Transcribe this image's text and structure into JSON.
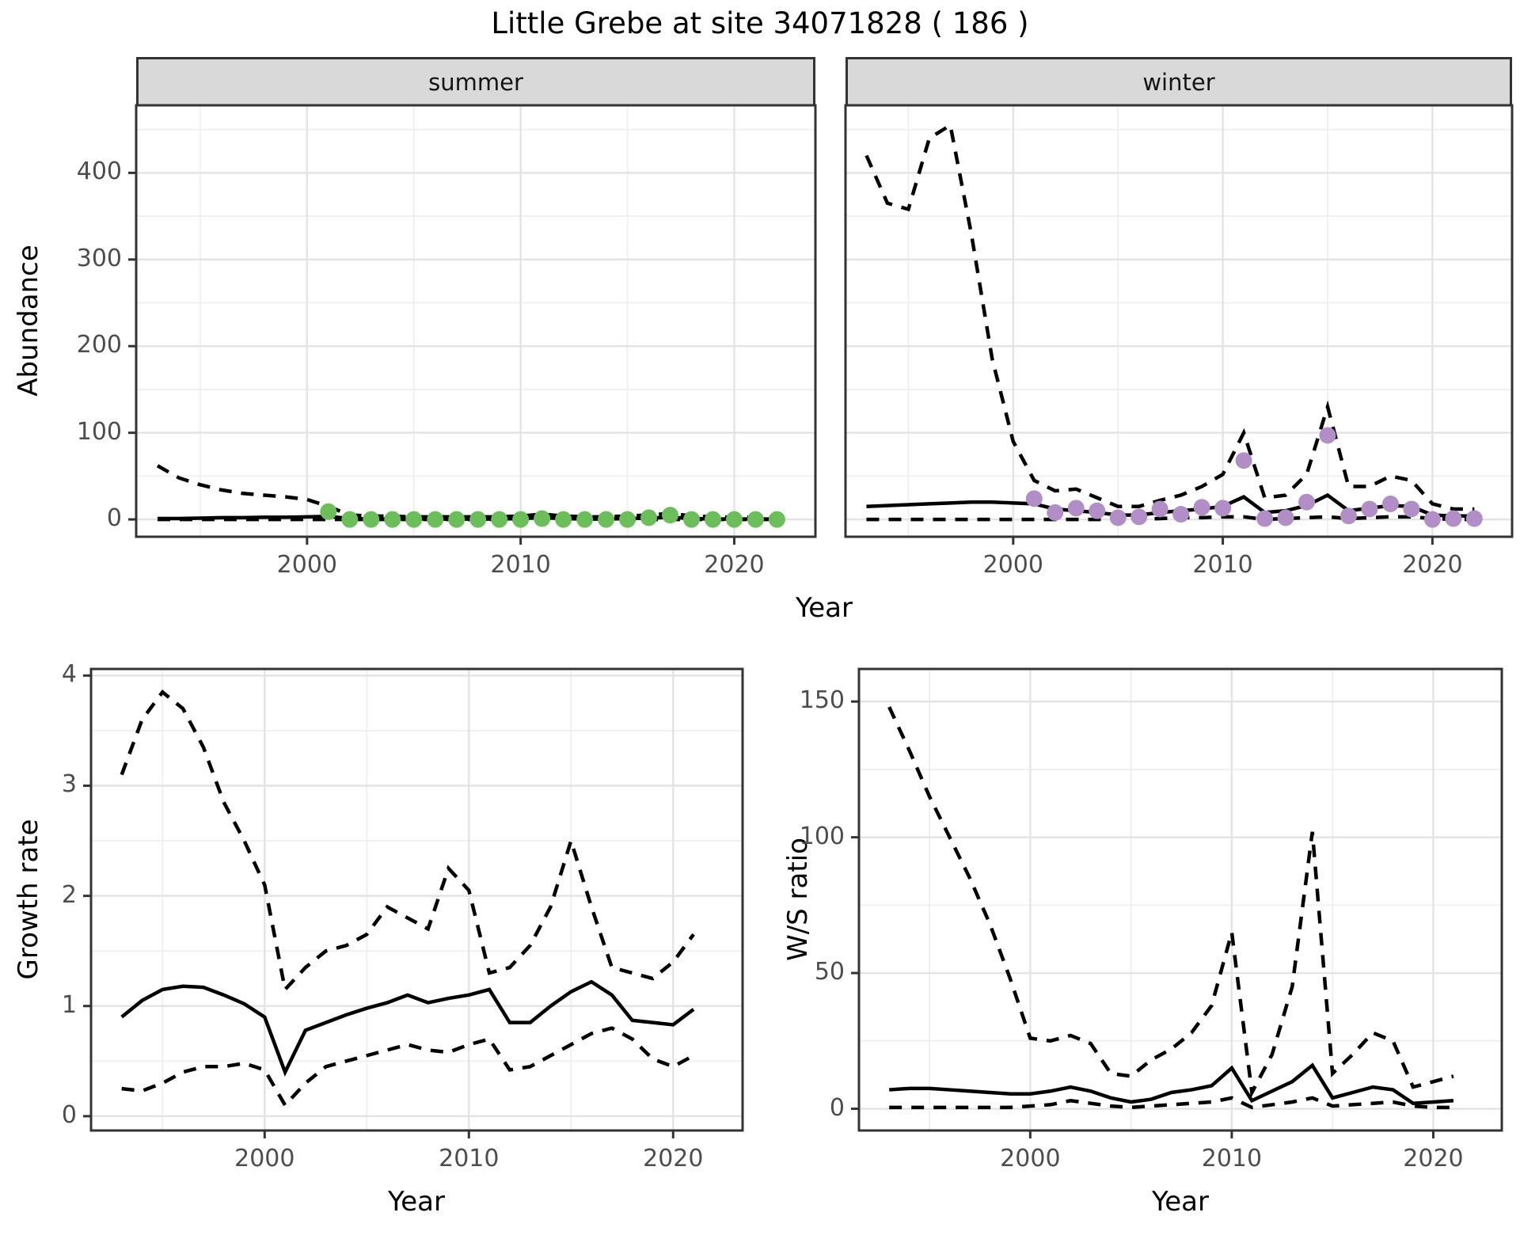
{
  "title": "Little Grebe at site 34071828 ( 186 )",
  "colors": {
    "line": "#000000",
    "summer_points": "#6BBE5A",
    "winter_points": "#B28EC7",
    "grid_major": "#e4e4e4",
    "grid_minor": "#efefef",
    "panel_border": "#333333",
    "strip_bg": "#d9d9d9",
    "tick_text": "#4d4d4d"
  },
  "chart_data": [
    {
      "id": "abundance-summer",
      "type": "line",
      "facet": "summer",
      "xlabel": "Year",
      "ylabel": "Abundance",
      "xlim": [
        1992,
        2023.8
      ],
      "ylim": [
        -20,
        478
      ],
      "xticks": [
        2000,
        2010,
        2020
      ],
      "xminor": [
        1995,
        2005,
        2015
      ],
      "yticks": [
        0,
        100,
        200,
        300,
        400
      ],
      "yminor": [
        50,
        150,
        250,
        350,
        450
      ],
      "show_yaxis": true,
      "x": [
        1993,
        1994,
        1995,
        1996,
        1997,
        1998,
        1999,
        2000,
        2001,
        2002,
        2003,
        2004,
        2005,
        2006,
        2007,
        2008,
        2009,
        2010,
        2011,
        2012,
        2013,
        2014,
        2015,
        2016,
        2017,
        2018,
        2019,
        2020,
        2021,
        2022
      ],
      "series": [
        {
          "name": "upper-95ci",
          "style": "dashed",
          "values": [
            62,
            48,
            40,
            34,
            30,
            28,
            26,
            23,
            15,
            5,
            4,
            3.5,
            3,
            3,
            3,
            3,
            3,
            4,
            6,
            4,
            3,
            3,
            4,
            5,
            7,
            4,
            3,
            2.5,
            2.5,
            2.5
          ]
        },
        {
          "name": "model-fit",
          "style": "solid",
          "values": [
            1,
            1,
            1.5,
            2,
            2,
            2.5,
            2.5,
            3,
            3.5,
            1,
            0.5,
            0.5,
            0.5,
            0.5,
            0.5,
            0.5,
            0.5,
            1,
            2,
            1,
            0.5,
            0.5,
            1,
            1.5,
            2.5,
            1,
            0.5,
            0.5,
            0.5,
            0.5
          ]
        },
        {
          "name": "lower-95ci",
          "style": "dashed",
          "values": [
            0,
            0,
            0,
            0,
            0,
            0,
            0,
            0,
            0,
            0,
            0,
            0,
            0,
            0,
            0,
            0,
            0,
            0,
            0,
            0,
            0,
            0,
            0,
            0,
            0,
            0,
            0,
            0,
            0,
            0
          ]
        }
      ],
      "points": {
        "name": "observed-summer-counts",
        "color": "#6BBE5A",
        "x": [
          2001,
          2002,
          2003,
          2004,
          2005,
          2006,
          2007,
          2008,
          2009,
          2010,
          2011,
          2012,
          2013,
          2014,
          2015,
          2016,
          2017,
          2018,
          2019,
          2020,
          2021,
          2022
        ],
        "values": [
          9,
          0,
          0,
          0,
          0,
          0,
          0,
          0,
          0,
          0,
          1,
          0,
          0,
          0,
          0,
          2,
          5,
          0,
          0,
          0,
          0,
          0
        ]
      }
    },
    {
      "id": "abundance-winter",
      "type": "line",
      "facet": "winter",
      "xlabel": "Year",
      "ylabel": "Abundance",
      "xlim": [
        1992,
        2023.8
      ],
      "ylim": [
        -20,
        478
      ],
      "xticks": [
        2000,
        2010,
        2020
      ],
      "xminor": [
        1995,
        2005,
        2015
      ],
      "yticks": [
        0,
        100,
        200,
        300,
        400
      ],
      "yminor": [
        50,
        150,
        250,
        350,
        450
      ],
      "show_yaxis": false,
      "x": [
        1993,
        1994,
        1995,
        1996,
        1997,
        1998,
        1999,
        2000,
        2001,
        2002,
        2003,
        2004,
        2005,
        2006,
        2007,
        2008,
        2009,
        2010,
        2011,
        2012,
        2013,
        2014,
        2015,
        2016,
        2017,
        2018,
        2019,
        2020,
        2021,
        2022
      ],
      "series": [
        {
          "name": "upper-95ci",
          "style": "dashed",
          "values": [
            420,
            365,
            358,
            440,
            455,
            330,
            185,
            90,
            45,
            33,
            35,
            25,
            15,
            15,
            22,
            28,
            38,
            52,
            100,
            25,
            28,
            52,
            130,
            38,
            38,
            50,
            45,
            18,
            12,
            12
          ]
        },
        {
          "name": "model-fit",
          "style": "solid",
          "values": [
            15,
            16,
            17,
            18,
            19,
            20,
            20,
            19,
            18,
            12,
            10,
            8,
            5,
            5,
            8,
            10,
            12,
            15,
            26,
            8,
            10,
            16,
            28,
            10,
            13,
            16,
            15,
            5,
            4,
            4
          ]
        },
        {
          "name": "lower-95ci",
          "style": "dashed",
          "values": [
            0,
            0,
            0,
            0,
            0,
            0,
            0,
            0,
            0,
            0,
            0,
            0,
            0,
            0,
            1,
            2,
            2,
            3,
            3,
            0,
            1,
            2,
            3,
            1,
            2,
            3,
            3,
            1,
            0,
            0
          ]
        }
      ],
      "points": {
        "name": "observed-winter-counts",
        "color": "#B28EC7",
        "x": [
          2001,
          2002,
          2003,
          2004,
          2005,
          2006,
          2007,
          2008,
          2009,
          2010,
          2011,
          2012,
          2013,
          2014,
          2015,
          2016,
          2017,
          2018,
          2019,
          2020,
          2021,
          2022
        ],
        "values": [
          24,
          8,
          13,
          10,
          2,
          3,
          12,
          6,
          14,
          13,
          68,
          1,
          2,
          20,
          97,
          4,
          12,
          18,
          12,
          0,
          1,
          1
        ]
      }
    },
    {
      "id": "growth-rate",
      "type": "line",
      "facet": "",
      "xlabel": "Year",
      "ylabel": "Growth rate",
      "xlim": [
        1991.5,
        2023.4
      ],
      "ylim": [
        -0.13,
        4.06
      ],
      "xticks": [
        2000,
        2010,
        2020
      ],
      "xminor": [
        1995,
        2005,
        2015
      ],
      "yticks": [
        0,
        1,
        2,
        3,
        4
      ],
      "yminor": [
        0.5,
        1.5,
        2.5,
        3.5
      ],
      "show_yaxis": true,
      "x": [
        1993,
        1994,
        1995,
        1996,
        1997,
        1998,
        1999,
        2000,
        2001,
        2002,
        2003,
        2004,
        2005,
        2006,
        2007,
        2008,
        2009,
        2010,
        2011,
        2012,
        2013,
        2014,
        2015,
        2016,
        2017,
        2018,
        2019,
        2020,
        2021
      ],
      "series": [
        {
          "name": "upper-95ci",
          "style": "dashed",
          "values": [
            3.1,
            3.6,
            3.85,
            3.7,
            3.35,
            2.85,
            2.5,
            2.1,
            1.15,
            1.35,
            1.5,
            1.55,
            1.65,
            1.9,
            1.8,
            1.7,
            2.25,
            2.05,
            1.3,
            1.35,
            1.55,
            1.9,
            2.5,
            1.9,
            1.35,
            1.3,
            1.25,
            1.4,
            1.65
          ]
        },
        {
          "name": "model-fit",
          "style": "solid",
          "values": [
            0.9,
            1.05,
            1.15,
            1.18,
            1.17,
            1.1,
            1.02,
            0.9,
            0.4,
            0.78,
            0.85,
            0.92,
            0.98,
            1.03,
            1.1,
            1.03,
            1.07,
            1.1,
            1.15,
            0.85,
            0.85,
            1.0,
            1.13,
            1.22,
            1.1,
            0.87,
            0.85,
            0.83,
            0.97
          ]
        },
        {
          "name": "lower-95ci",
          "style": "dashed",
          "values": [
            0.25,
            0.23,
            0.3,
            0.4,
            0.45,
            0.45,
            0.48,
            0.42,
            0.1,
            0.3,
            0.45,
            0.5,
            0.55,
            0.6,
            0.65,
            0.6,
            0.58,
            0.65,
            0.7,
            0.42,
            0.45,
            0.55,
            0.65,
            0.75,
            0.8,
            0.7,
            0.52,
            0.45,
            0.55
          ]
        }
      ]
    },
    {
      "id": "ws-ratio",
      "type": "line",
      "facet": "",
      "xlabel": "Year",
      "ylabel": "W/S ratio",
      "xlim": [
        1991.5,
        2023.4
      ],
      "ylim": [
        -8,
        162
      ],
      "xticks": [
        2000,
        2010,
        2020
      ],
      "xminor": [
        1995,
        2005,
        2015
      ],
      "yticks": [
        0,
        50,
        100,
        150
      ],
      "yminor": [
        25,
        75,
        125
      ],
      "show_yaxis": true,
      "x": [
        1993,
        1994,
        1995,
        1996,
        1997,
        1998,
        1999,
        2000,
        2001,
        2002,
        2003,
        2004,
        2005,
        2006,
        2007,
        2008,
        2009,
        2010,
        2011,
        2012,
        2013,
        2014,
        2015,
        2016,
        2017,
        2018,
        2019,
        2020,
        2021
      ],
      "series": [
        {
          "name": "upper-95ci",
          "style": "dashed",
          "values": [
            148,
            132,
            115,
            100,
            85,
            68,
            48,
            26,
            25,
            27,
            24,
            13,
            12,
            18,
            22,
            28,
            38,
            65,
            6,
            20,
            45,
            102,
            13,
            20,
            28,
            25,
            8,
            10,
            12
          ]
        },
        {
          "name": "model-fit",
          "style": "solid",
          "values": [
            7,
            7.5,
            7.5,
            7,
            6.5,
            6,
            5.5,
            5.5,
            6.5,
            8,
            6.5,
            4,
            2.5,
            3.5,
            6,
            7,
            8.5,
            15,
            3,
            6.5,
            10,
            16,
            4,
            6,
            8,
            7,
            2,
            2.5,
            3
          ]
        },
        {
          "name": "lower-95ci",
          "style": "dashed",
          "values": [
            0.5,
            0.5,
            0.5,
            0.5,
            0.5,
            0.5,
            0.5,
            1,
            1.5,
            3,
            2,
            1,
            0.5,
            1,
            1.5,
            2,
            2.5,
            4,
            0.5,
            1.5,
            2.5,
            4,
            1,
            1.5,
            2,
            2.5,
            1,
            0.5,
            0.5
          ]
        }
      ]
    }
  ]
}
